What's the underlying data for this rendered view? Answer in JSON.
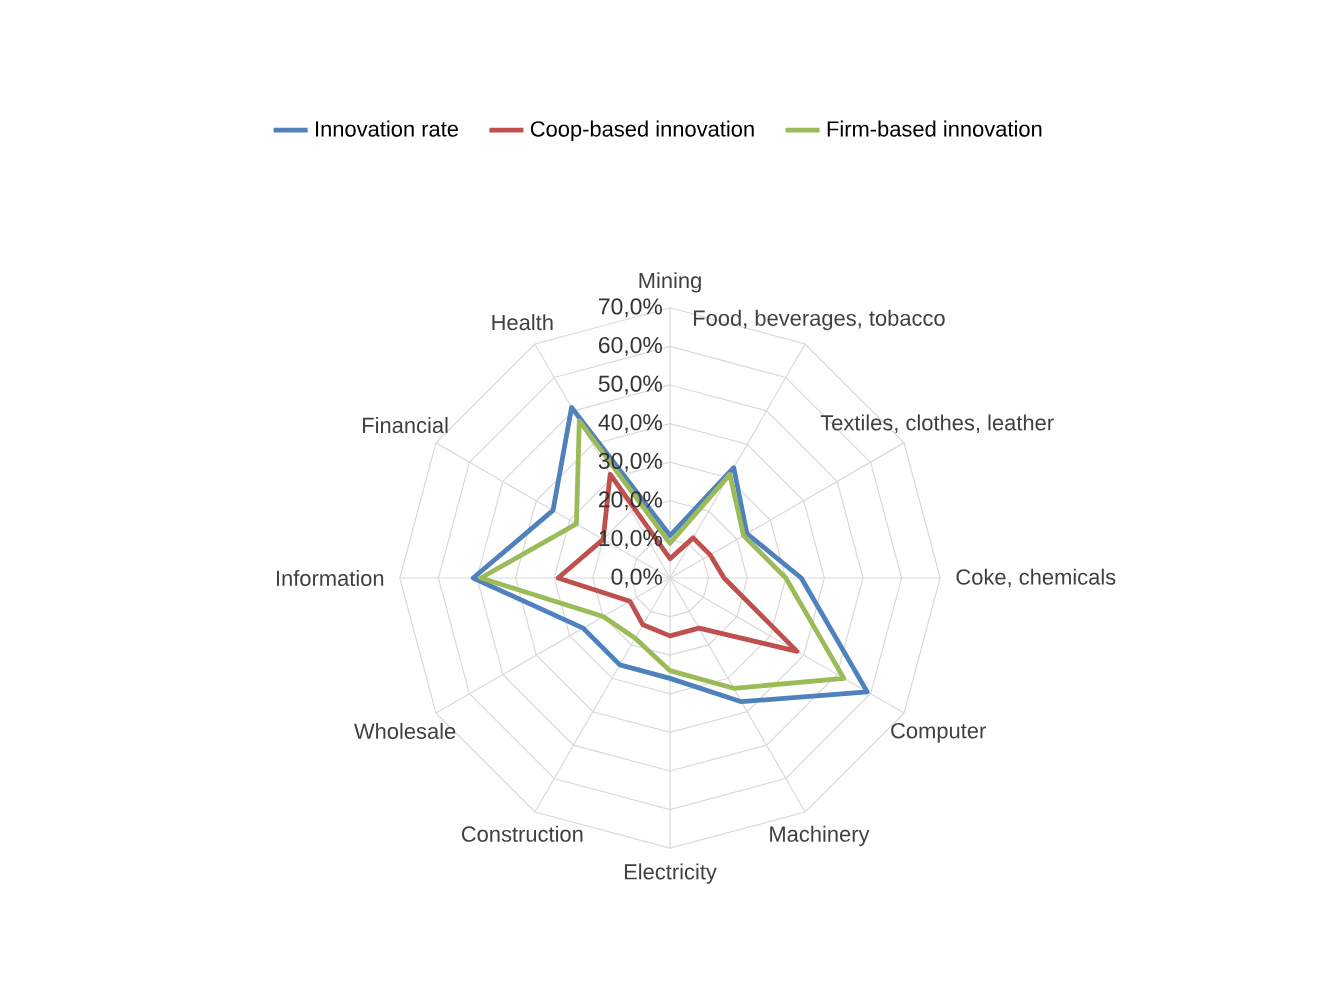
{
  "chart_data": {
    "type": "radar",
    "legend": "top",
    "grid": true,
    "categories": [
      "Mining",
      "Food, beverages, tobacco",
      "Textiles, clothes, leather",
      "Coke, chemicals",
      "Computer",
      "Machinery",
      "Electricity",
      "Construction",
      "Wholesale",
      "Information",
      "Financial",
      "Health"
    ],
    "ylim": [
      0,
      70
    ],
    "yticks": [
      {
        "value": 0,
        "label": "0,0%"
      },
      {
        "value": 10,
        "label": "10,0%"
      },
      {
        "value": 20,
        "label": "20,0%"
      },
      {
        "value": 30,
        "label": "30,0%"
      },
      {
        "value": 40,
        "label": "40,0%"
      },
      {
        "value": 50,
        "label": "50,0%"
      },
      {
        "value": 60,
        "label": "60,0%"
      },
      {
        "value": 70,
        "label": "70,0%"
      }
    ],
    "series": [
      {
        "name": "Innovation rate",
        "color": "#4f81bd",
        "values": [
          11,
          33,
          23,
          34,
          59,
          37,
          26,
          26,
          26,
          51,
          35,
          51
        ]
      },
      {
        "name": "Coop-based innovation",
        "color": "#c0504d",
        "values": [
          5,
          12,
          12,
          14,
          38,
          15,
          15,
          14,
          12,
          29,
          20,
          31
        ]
      },
      {
        "name": "Firm-based innovation",
        "color": "#9bbb59",
        "values": [
          9,
          31,
          22,
          30,
          52,
          33,
          24,
          18,
          20,
          49,
          28,
          47
        ]
      }
    ]
  }
}
